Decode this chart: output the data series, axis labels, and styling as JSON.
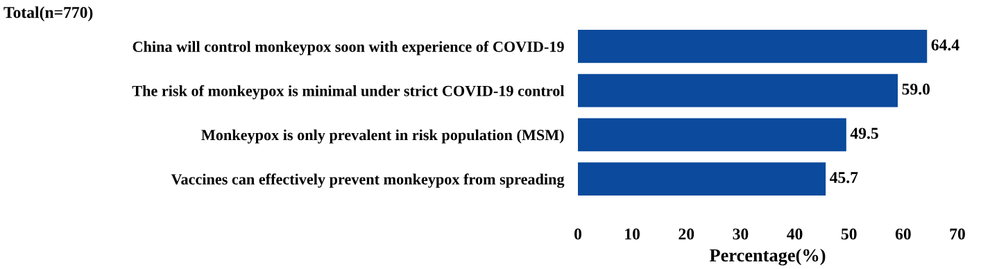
{
  "chart_data": {
    "type": "bar",
    "orientation": "horizontal",
    "title": "Total(n=770)",
    "xlabel": "Percentage(%)",
    "categories": [
      "China will control monkeypox soon with experience of COVID-19",
      "The risk of monkeypox is minimal under strict COVID-19 control",
      "Monkeypox is only prevalent in risk population (MSM)",
      "Vaccines can effectively prevent monkeypox from spreading"
    ],
    "values": [
      64.4,
      59.0,
      49.5,
      45.7
    ],
    "value_labels": [
      "64.4",
      "59.0",
      "49.5",
      "45.7"
    ],
    "color": "#0b4a9c",
    "xlim": [
      0,
      70
    ],
    "xticks": [
      0,
      10,
      20,
      30,
      40,
      50,
      60,
      70
    ],
    "grid": false
  }
}
